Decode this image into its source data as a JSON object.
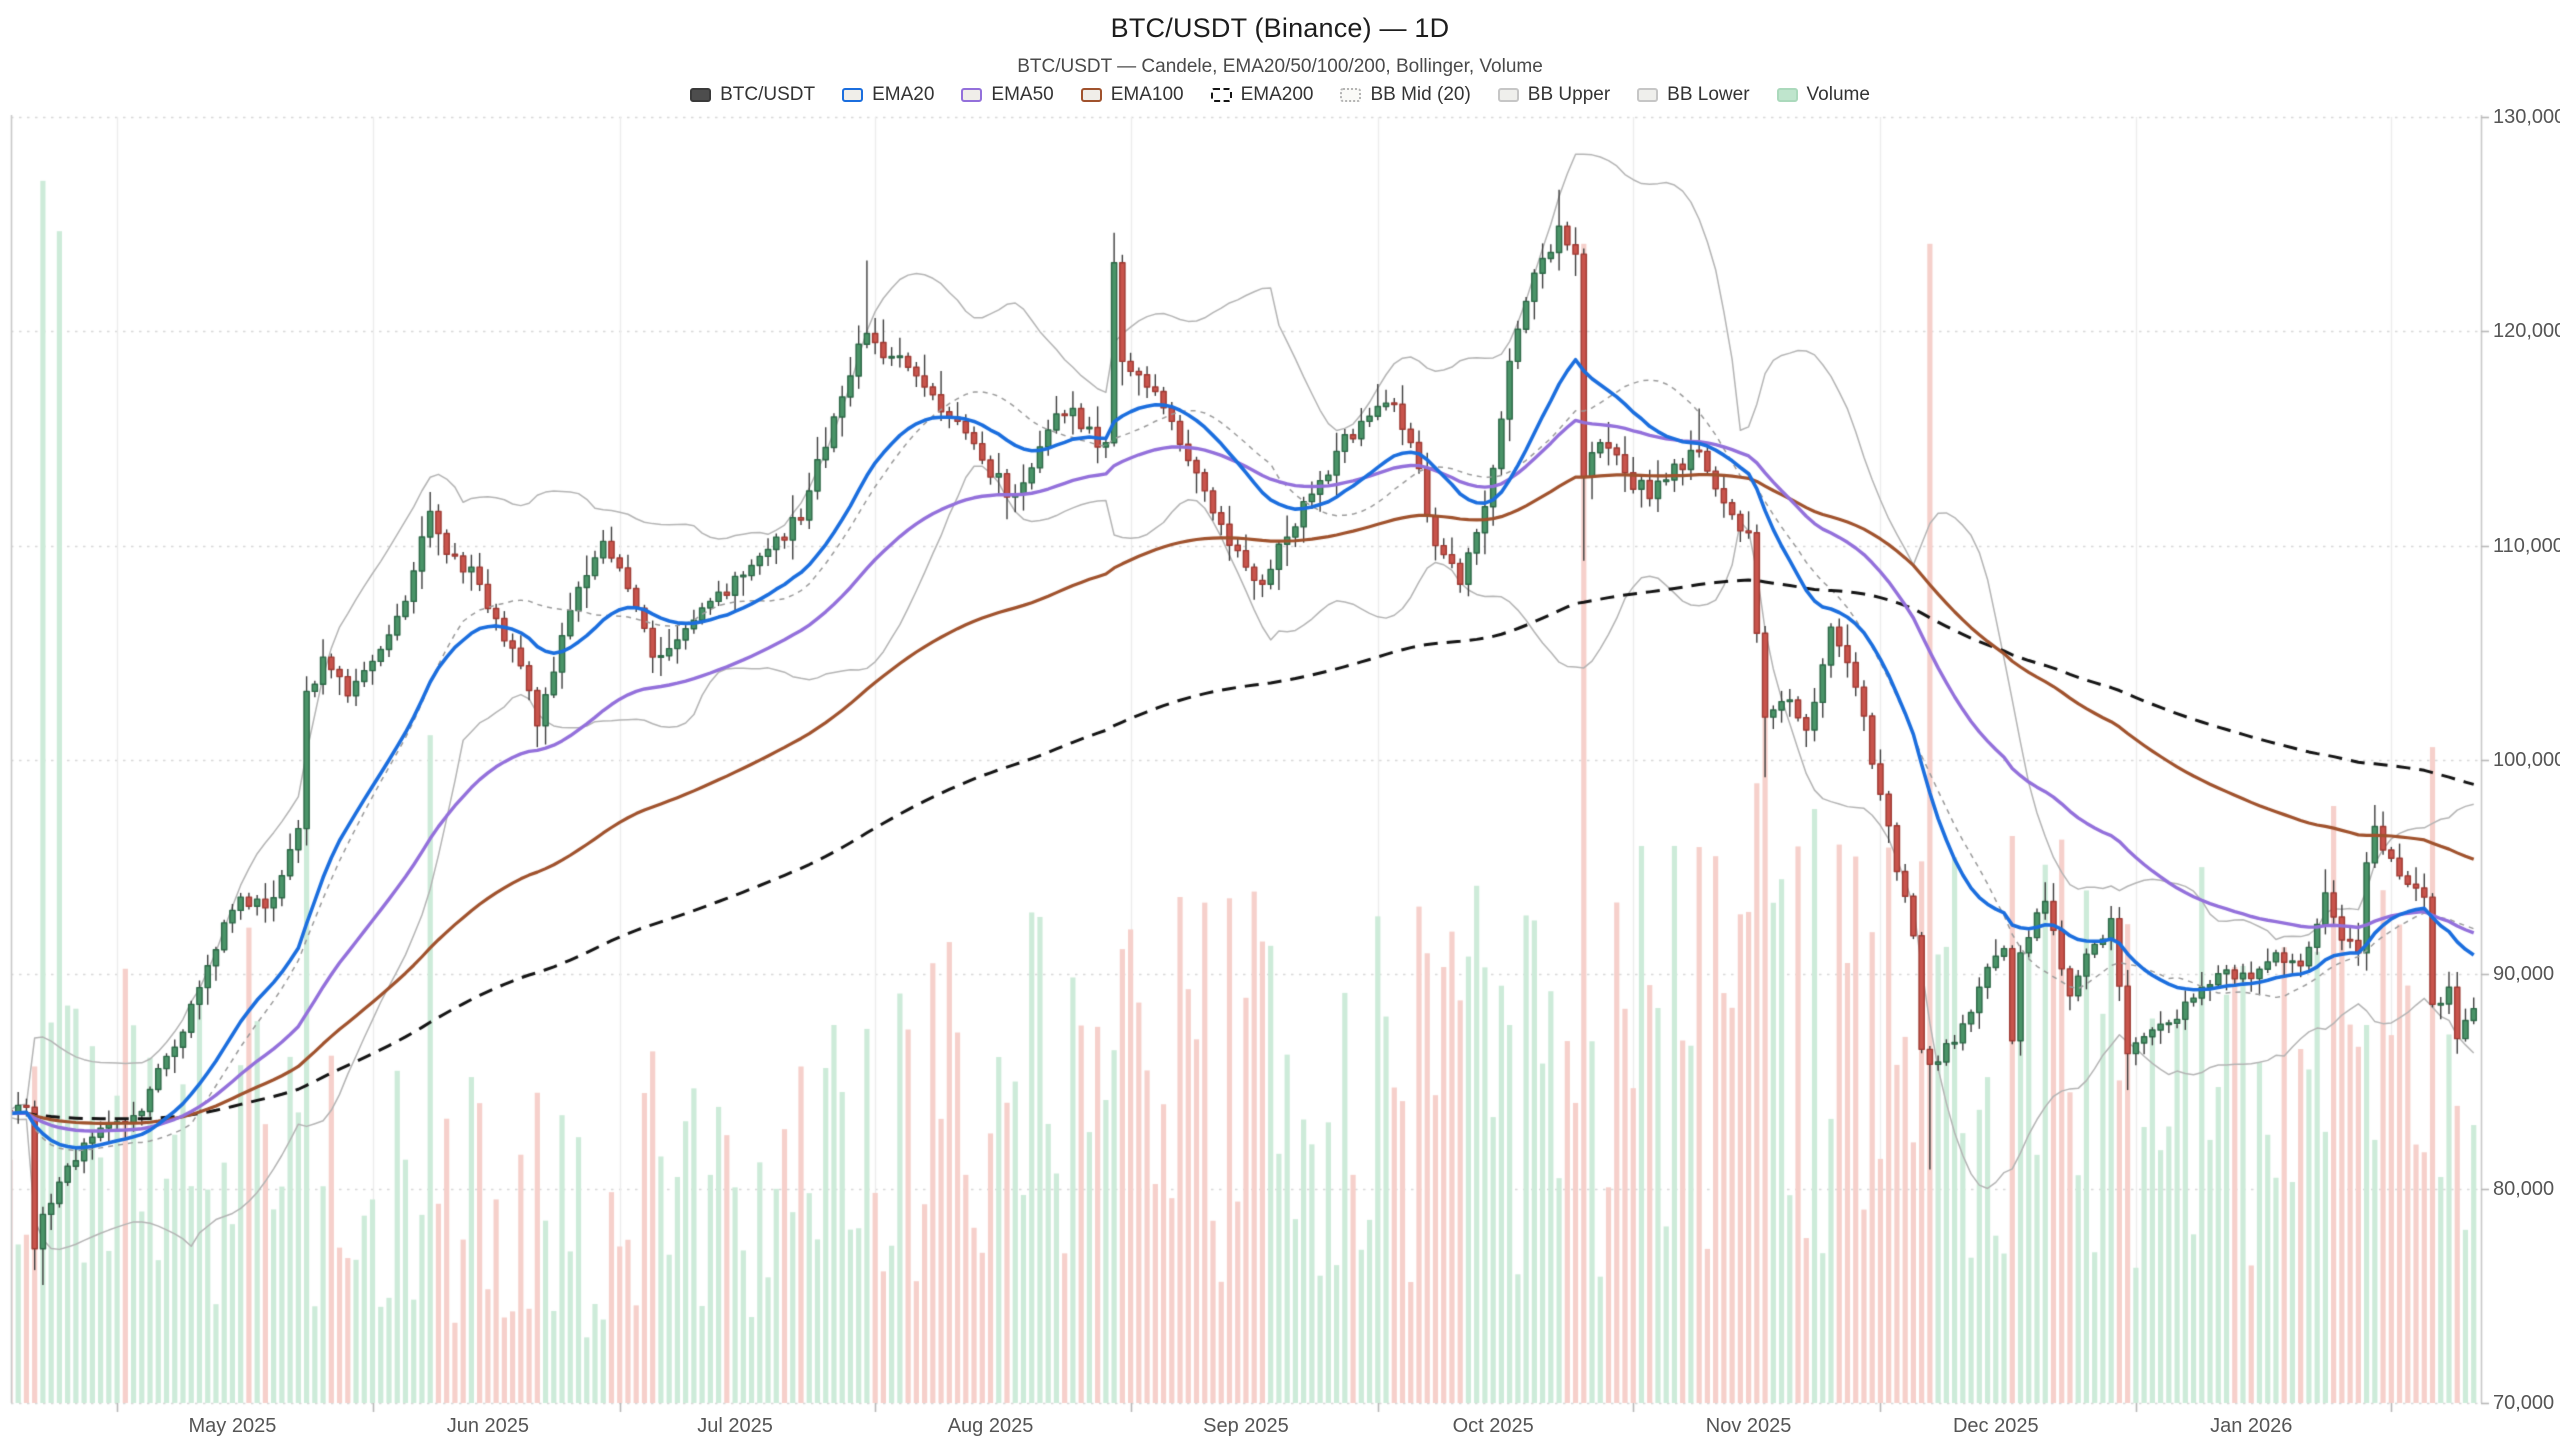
{
  "header": {
    "title": "BTC/USDT (Binance) — 1D",
    "subtitle": "BTC/USDT — Candele, EMA20/50/100/200, Bollinger, Volume"
  },
  "legend": {
    "items": [
      {
        "id": "btcusdt",
        "label": "BTC/USDT",
        "fill": "#4d4d4d",
        "border": "#3a3a3a",
        "style": "solid"
      },
      {
        "id": "ema20",
        "label": "EMA20",
        "fill": "#f0eee9",
        "border": "#1b6ede",
        "style": "solid"
      },
      {
        "id": "ema50",
        "label": "EMA50",
        "fill": "#f0eee9",
        "border": "#9370db",
        "style": "solid"
      },
      {
        "id": "ema100",
        "label": "EMA100",
        "fill": "#f0eee9",
        "border": "#a0522d",
        "style": "solid"
      },
      {
        "id": "ema200",
        "label": "EMA200",
        "fill": "#ffffff",
        "border": "#141414",
        "style": "dashed"
      },
      {
        "id": "bb-mid",
        "label": "BB Mid (20)",
        "fill": "#fafaf7",
        "border": "#b4b4b4",
        "style": "dotted"
      },
      {
        "id": "bb-upper",
        "label": "BB Upper",
        "fill": "#efefec",
        "border": "#c6c6c6",
        "style": "solid"
      },
      {
        "id": "bb-lower",
        "label": "BB Lower",
        "fill": "#efefec",
        "border": "#c6c6c6",
        "style": "solid"
      },
      {
        "id": "volume",
        "label": "Volume",
        "fill": "#bfe5cd",
        "border": "#abd9bc",
        "style": "solid"
      }
    ]
  },
  "chart_data": {
    "type": "candlestick",
    "symbol": "BTC/USDT",
    "exchange": "Binance",
    "timeframe": "1D",
    "title": "BTC/USDT (Binance) — 1D",
    "start_date": "2025-04-14",
    "days": 304,
    "grid": true,
    "legend_position": "top",
    "y_axis": {
      "min": 70000,
      "max": 130000,
      "tick_step": 10000,
      "ticks": [
        {
          "value": 130000,
          "label": "130,000"
        },
        {
          "value": 120000,
          "label": "120,000"
        },
        {
          "value": 110000,
          "label": "110,000"
        },
        {
          "value": 100000,
          "label": "100,000"
        },
        {
          "value": 90000,
          "label": "90,000"
        },
        {
          "value": 80000,
          "label": "80,000"
        },
        {
          "value": 70000,
          "label": "70,000"
        }
      ]
    },
    "x_axis": {
      "labels": [
        "May 2025",
        "Jun 2025",
        "Jul 2025",
        "Aug 2025",
        "Sep 2025",
        "Oct 2025",
        "Nov 2025",
        "Dec 2025",
        "Jan 2026"
      ]
    },
    "indicators": [
      "EMA20",
      "EMA50",
      "EMA100",
      "EMA200",
      "Bollinger(20,2)",
      "Volume"
    ],
    "close_anchors": [
      [
        4,
        83500
      ],
      [
        6,
        83800
      ],
      [
        7,
        77200
      ],
      [
        8,
        78800
      ],
      [
        10,
        80300
      ],
      [
        14,
        82400
      ],
      [
        17,
        83100
      ],
      [
        20,
        83600
      ],
      [
        22,
        85600
      ],
      [
        24,
        86600
      ],
      [
        26,
        88600
      ],
      [
        28,
        90400
      ],
      [
        30,
        92400
      ],
      [
        32,
        93600
      ],
      [
        35,
        93100
      ],
      [
        37,
        94600
      ],
      [
        39,
        96800
      ],
      [
        40,
        103200
      ],
      [
        42,
        104800
      ],
      [
        45,
        103000
      ],
      [
        48,
        104600
      ],
      [
        52,
        107400
      ],
      [
        55,
        111600
      ],
      [
        57,
        109600
      ],
      [
        60,
        109000
      ],
      [
        63,
        106600
      ],
      [
        66,
        104400
      ],
      [
        68,
        101600
      ],
      [
        71,
        105800
      ],
      [
        74,
        108600
      ],
      [
        76,
        110200
      ],
      [
        79,
        108000
      ],
      [
        82,
        104800
      ],
      [
        85,
        105600
      ],
      [
        89,
        107400
      ],
      [
        93,
        108600
      ],
      [
        97,
        110400
      ],
      [
        100,
        111200
      ],
      [
        104,
        116000
      ],
      [
        107,
        119400
      ],
      [
        108,
        119900
      ],
      [
        111,
        118800
      ],
      [
        115,
        117400
      ],
      [
        119,
        115800
      ],
      [
        123,
        113200
      ],
      [
        126,
        112400
      ],
      [
        130,
        115400
      ],
      [
        133,
        116400
      ],
      [
        136,
        114600
      ],
      [
        137,
        114800
      ],
      [
        138,
        123200
      ],
      [
        139,
        118600
      ],
      [
        142,
        117400
      ],
      [
        145,
        115800
      ],
      [
        148,
        113400
      ],
      [
        151,
        111000
      ],
      [
        154,
        109000
      ],
      [
        156,
        108200
      ],
      [
        159,
        110400
      ],
      [
        162,
        112400
      ],
      [
        165,
        114400
      ],
      [
        168,
        115800
      ],
      [
        172,
        116600
      ],
      [
        175,
        113600
      ],
      [
        177,
        110000
      ],
      [
        180,
        108200
      ],
      [
        182,
        110600
      ],
      [
        184,
        113600
      ],
      [
        186,
        118600
      ],
      [
        188,
        121400
      ],
      [
        190,
        123400
      ],
      [
        192,
        124900
      ],
      [
        194,
        123600
      ],
      [
        195,
        113200
      ],
      [
        197,
        114800
      ],
      [
        200,
        113400
      ],
      [
        203,
        112200
      ],
      [
        206,
        113800
      ],
      [
        209,
        114400
      ],
      [
        212,
        112000
      ],
      [
        215,
        110600
      ],
      [
        217,
        102000
      ],
      [
        220,
        102800
      ],
      [
        222,
        101400
      ],
      [
        225,
        106200
      ],
      [
        228,
        103400
      ],
      [
        231,
        98400
      ],
      [
        233,
        94800
      ],
      [
        235,
        91800
      ],
      [
        236,
        86500
      ],
      [
        237,
        85800
      ],
      [
        240,
        86800
      ],
      [
        243,
        89400
      ],
      [
        246,
        91200
      ],
      [
        247,
        86900
      ],
      [
        248,
        91000
      ],
      [
        251,
        93400
      ],
      [
        254,
        89000
      ],
      [
        257,
        91400
      ],
      [
        259,
        92600
      ],
      [
        261,
        86300
      ],
      [
        264,
        87400
      ],
      [
        267,
        87900
      ],
      [
        270,
        89400
      ],
      [
        273,
        90200
      ],
      [
        276,
        89800
      ],
      [
        279,
        91000
      ],
      [
        282,
        90400
      ],
      [
        285,
        93800
      ],
      [
        287,
        91600
      ],
      [
        289,
        91000
      ],
      [
        290,
        95200
      ],
      [
        291,
        96900
      ],
      [
        292,
        95800
      ],
      [
        295,
        94200
      ],
      [
        297,
        93600
      ],
      [
        298,
        88600
      ],
      [
        300,
        89400
      ],
      [
        301,
        87000
      ],
      [
        303,
        88400
      ]
    ],
    "high_overrides": {
      "108": 123300,
      "138": 124600,
      "192": 126600,
      "209": 116400,
      "251": 94300,
      "285": 94900,
      "291": 97900
    },
    "low_overrides": {
      "7": 76200,
      "8": 75500,
      "68": 100600,
      "156": 107600,
      "180": 107800,
      "195": 109300,
      "217": 99200,
      "237": 80900,
      "261": 84600,
      "301": 86300
    },
    "volume_spikes": {
      "8": 0.97,
      "10": 0.93,
      "40": 0.5,
      "55": 0.53,
      "104": 0.3,
      "138": 0.28,
      "186": 0.3,
      "195": 0.92,
      "217": 0.55,
      "237": 0.92,
      "247": 0.45,
      "261": 0.38,
      "290": 0.3
    },
    "colors": {
      "up_fill": "#4a9468",
      "up_border": "#2d6847",
      "down_fill": "#c9544c",
      "down_border": "#9e3a33",
      "wick": "#3d3d3d",
      "ema20": "#1b6ede",
      "ema50": "#9370db",
      "ema100": "#a0522d",
      "ema200": "#141414",
      "bb_band": "#b4b4b4",
      "bb_mid": "#9b9b9b",
      "vol_up": "#cdebd9",
      "vol_down": "#f6d0cb",
      "grid": "#d8d8d8",
      "month_grid": "#ececec",
      "axis": "#c9c9c9",
      "tick": "#b8b8b8",
      "label": "#555555"
    }
  }
}
